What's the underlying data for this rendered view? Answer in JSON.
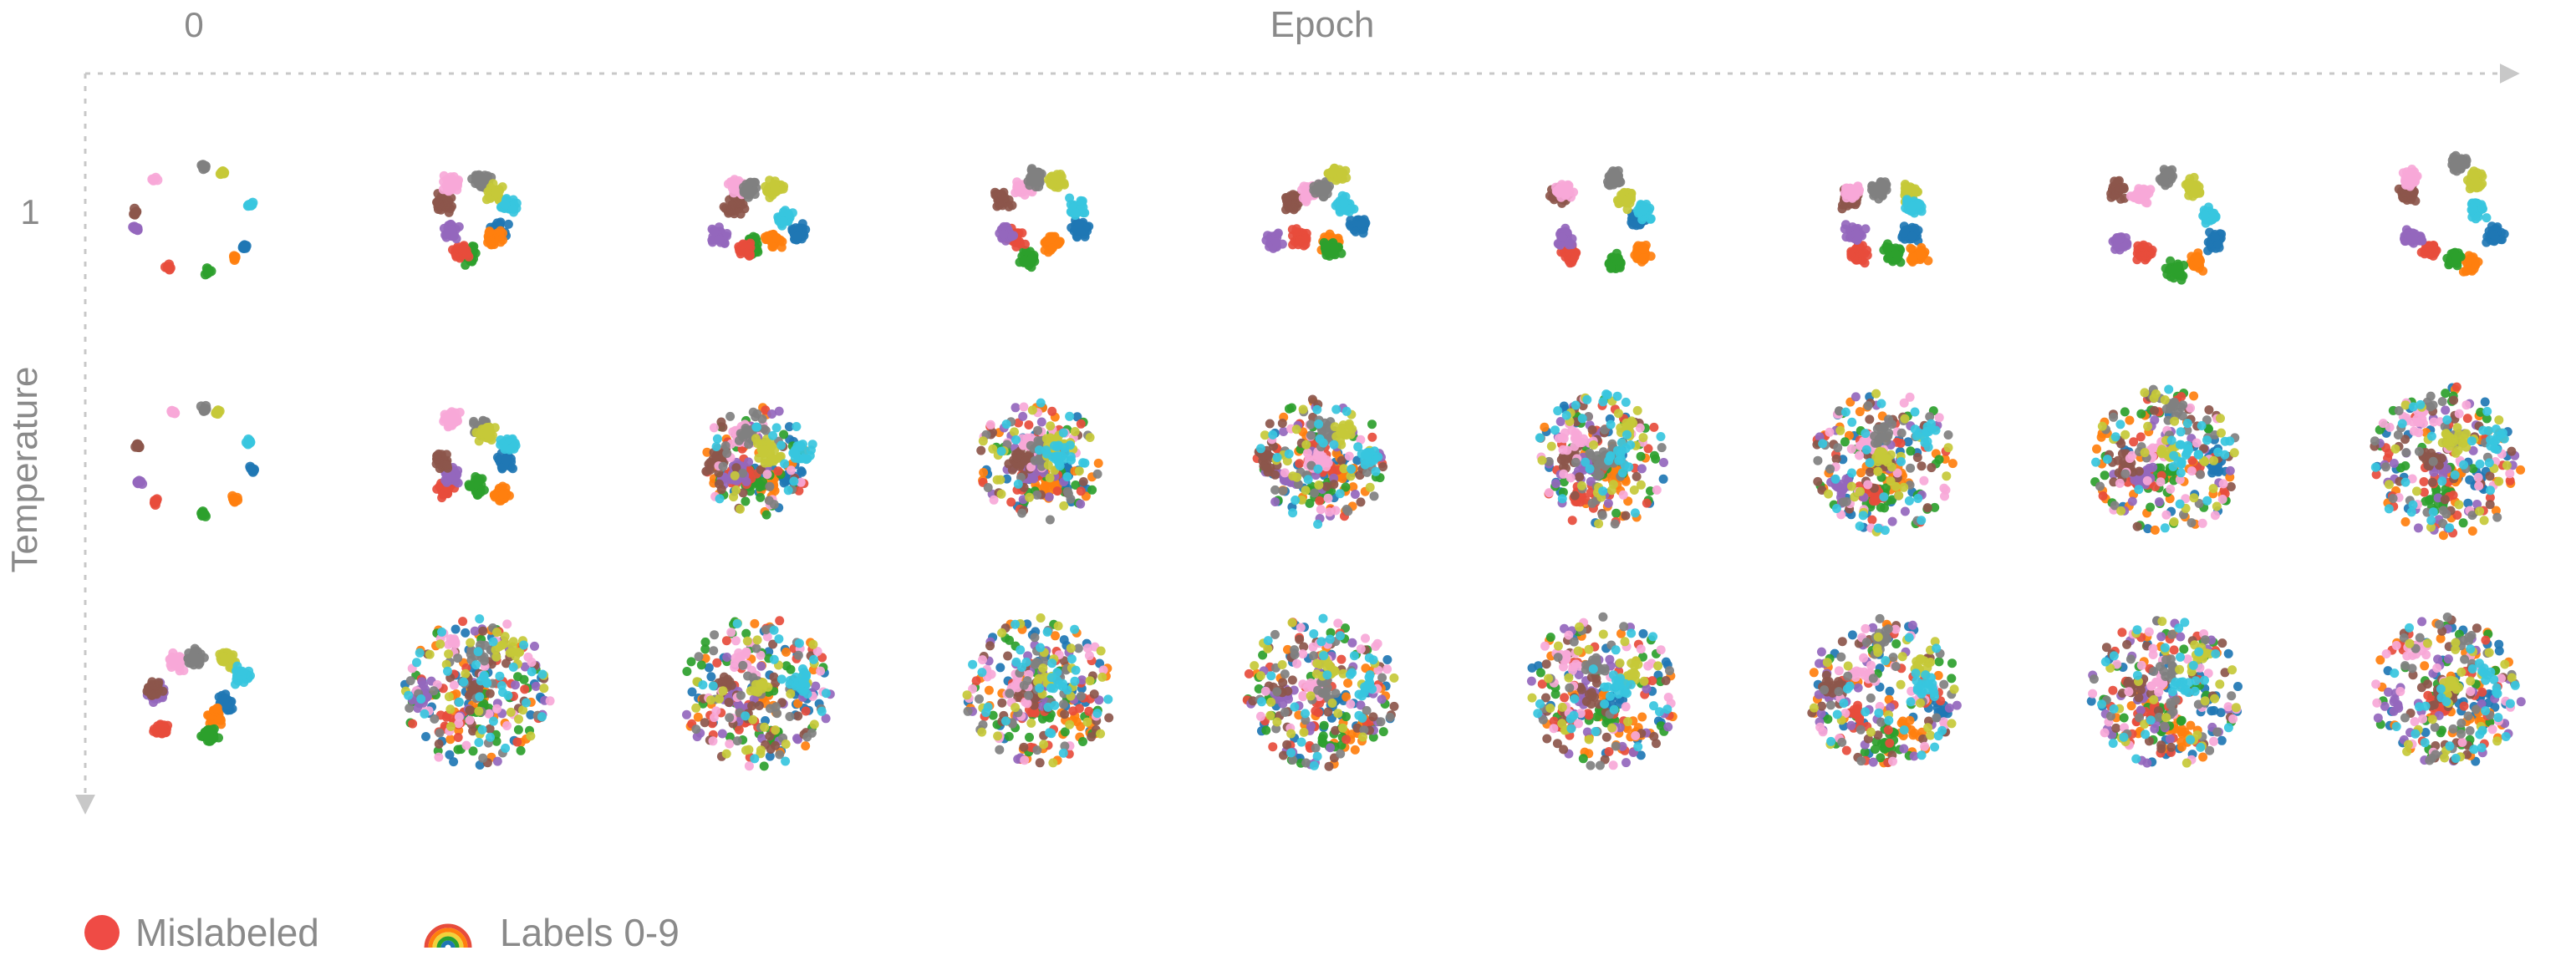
{
  "header": {
    "epoch_start_label": "0",
    "x_axis_title": "Epoch"
  },
  "sidebar": {
    "temperature_value_label": "1",
    "y_axis_title": "Temperature"
  },
  "legend": {
    "mislabeled_label": "Mislabeled",
    "mislabeled_color": "#ef4b45",
    "labels_label": "Labels 0-9",
    "labels_icon": "rainbow-icon"
  },
  "colors": [
    "#1f77b4",
    "#ff7f0e",
    "#2ca02c",
    "#e74c3c",
    "#9467bd",
    "#8c564b",
    "#f7a8d8",
    "#808080",
    "#c5c938",
    "#37c5de"
  ],
  "chart_data": {
    "type": "scatter",
    "description_grid": {
      "rows": 3,
      "columns": 9
    },
    "x_axis": {
      "title": "Epoch",
      "first_tick": "0"
    },
    "y_axis": {
      "title": "Temperature",
      "first_tick": "1"
    },
    "classes": [
      "0",
      "1",
      "2",
      "3",
      "4",
      "5",
      "6",
      "7",
      "8",
      "9"
    ],
    "panels": [
      {
        "row": 0,
        "col": 0,
        "spread": 0.18,
        "pattern": "ring",
        "seed": 11
      },
      {
        "row": 0,
        "col": 1,
        "spread": 0.32,
        "pattern": "ring",
        "seed": 12
      },
      {
        "row": 0,
        "col": 2,
        "spread": 0.36,
        "pattern": "ring",
        "seed": 13
      },
      {
        "row": 0,
        "col": 3,
        "spread": 0.42,
        "pattern": "ring",
        "seed": 14
      },
      {
        "row": 0,
        "col": 4,
        "spread": 0.45,
        "pattern": "ring",
        "seed": 15
      },
      {
        "row": 0,
        "col": 5,
        "spread": 0.48,
        "pattern": "ring",
        "seed": 16
      },
      {
        "row": 0,
        "col": 6,
        "spread": 0.52,
        "pattern": "ring",
        "seed": 17
      },
      {
        "row": 0,
        "col": 7,
        "spread": 0.56,
        "pattern": "ring",
        "seed": 18
      },
      {
        "row": 0,
        "col": 8,
        "spread": 0.6,
        "pattern": "ring",
        "seed": 19
      },
      {
        "row": 1,
        "col": 0,
        "spread": 0.2,
        "pattern": "ring",
        "seed": 21
      },
      {
        "row": 1,
        "col": 1,
        "spread": 0.45,
        "pattern": "ring",
        "seed": 22
      },
      {
        "row": 1,
        "col": 2,
        "spread": 0.55,
        "pattern": "mixed",
        "seed": 23
      },
      {
        "row": 1,
        "col": 3,
        "spread": 0.65,
        "pattern": "mixed",
        "seed": 24
      },
      {
        "row": 1,
        "col": 4,
        "spread": 0.72,
        "pattern": "mixed",
        "seed": 25
      },
      {
        "row": 1,
        "col": 5,
        "spread": 0.78,
        "pattern": "mixed",
        "seed": 26
      },
      {
        "row": 1,
        "col": 6,
        "spread": 0.85,
        "pattern": "mixed",
        "seed": 27
      },
      {
        "row": 1,
        "col": 7,
        "spread": 0.9,
        "pattern": "mixed",
        "seed": 28
      },
      {
        "row": 1,
        "col": 8,
        "spread": 0.95,
        "pattern": "mixed",
        "seed": 29
      },
      {
        "row": 2,
        "col": 0,
        "spread": 0.5,
        "pattern": "ring",
        "seed": 31
      },
      {
        "row": 2,
        "col": 1,
        "spread": 0.95,
        "pattern": "mixed",
        "seed": 32
      },
      {
        "row": 2,
        "col": 2,
        "spread": 0.95,
        "pattern": "mixed",
        "seed": 33
      },
      {
        "row": 2,
        "col": 3,
        "spread": 1.0,
        "pattern": "mixed",
        "seed": 34
      },
      {
        "row": 2,
        "col": 4,
        "spread": 1.0,
        "pattern": "mixed",
        "seed": 35
      },
      {
        "row": 2,
        "col": 5,
        "spread": 1.0,
        "pattern": "mixed",
        "seed": 36
      },
      {
        "row": 2,
        "col": 6,
        "spread": 1.0,
        "pattern": "mixed",
        "seed": 37
      },
      {
        "row": 2,
        "col": 7,
        "spread": 1.0,
        "pattern": "mixed",
        "seed": 38
      },
      {
        "row": 2,
        "col": 8,
        "spread": 1.0,
        "pattern": "mixed",
        "seed": 39
      }
    ],
    "legend": [
      "Mislabeled",
      "Labels 0-9"
    ]
  }
}
